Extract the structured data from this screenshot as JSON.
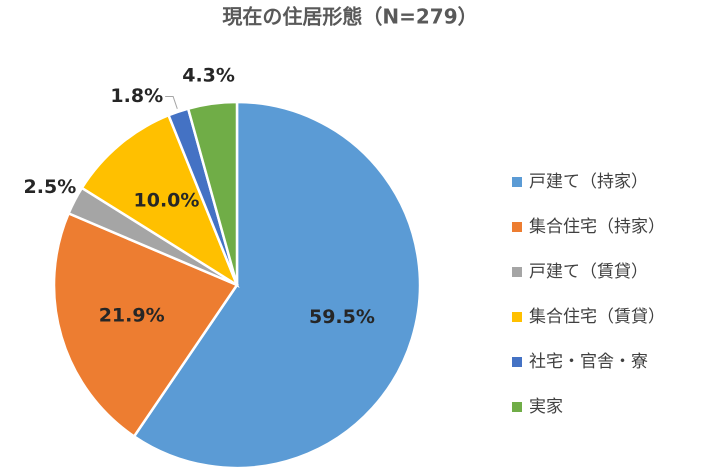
{
  "chart_data": {
    "type": "pie",
    "title": "現在の住居形態（N=279）",
    "categories": [
      "戸建て（持家）",
      "集合住宅（持家）",
      "戸建て（賃貸）",
      "集合住宅（賃貸）",
      "社宅・官舎・寮",
      "実家"
    ],
    "values": [
      59.5,
      21.9,
      2.5,
      10.0,
      1.8,
      4.3
    ],
    "value_labels": [
      "59.5%",
      "21.9%",
      "2.5%",
      "10.0%",
      "1.8%",
      "4.3%"
    ],
    "colors": [
      "#5b9bd5",
      "#ed7d31",
      "#a5a5a5",
      "#ffc000",
      "#4472c4",
      "#70ad47"
    ],
    "legend": "right"
  }
}
